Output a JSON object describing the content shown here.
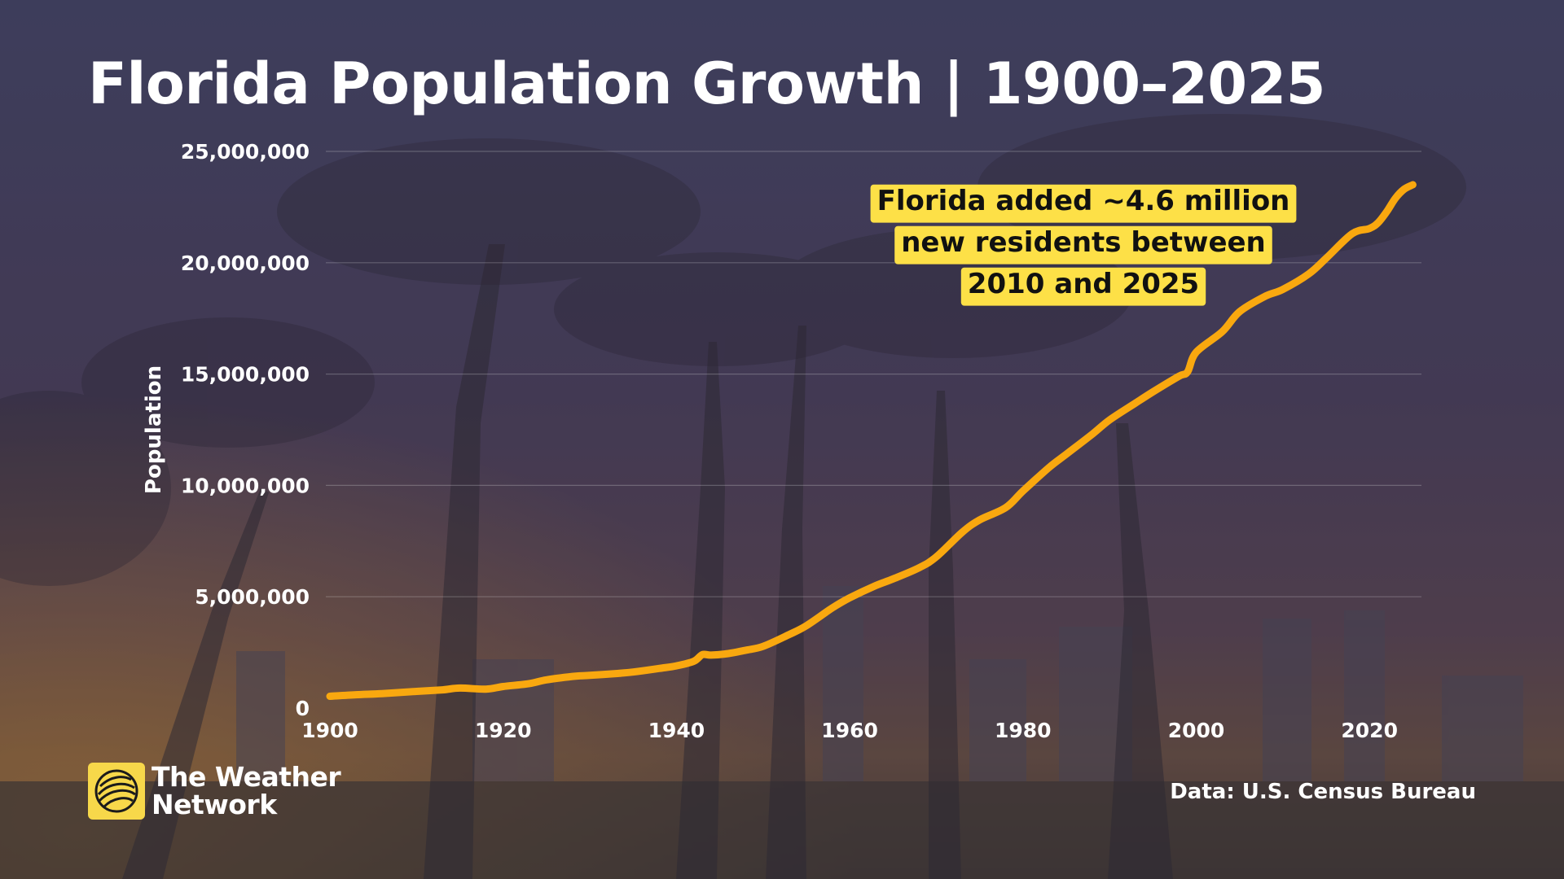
{
  "title": "Florida Population Growth | 1900–2025",
  "source": "Data: U.S. Census Bureau",
  "brand": {
    "line1": "The Weather",
    "line2": "Network",
    "icon": "globe-icon"
  },
  "colors": {
    "line": "#f9a80f",
    "annotation_bg": "#fde047",
    "annotation_text": "#111111",
    "text": "#ffffff",
    "grid": "rgba(255,255,255,0.22)",
    "brand_yellow": "#f7d84a"
  },
  "chart_data": {
    "type": "line",
    "title": "Florida Population Growth | 1900–2025",
    "xlabel": "",
    "ylabel": "Population",
    "xlim": [
      1900,
      2026
    ],
    "ylim": [
      0,
      25000000
    ],
    "x_ticks": [
      1900,
      1920,
      1940,
      1960,
      1980,
      2000,
      2020
    ],
    "x_tick_labels": [
      "1900",
      "1920",
      "1940",
      "1960",
      "1980",
      "2000",
      "2020"
    ],
    "y_ticks": [
      0,
      5000000,
      10000000,
      15000000,
      20000000,
      25000000
    ],
    "y_tick_labels": [
      "0",
      "5,000,000",
      "10,000,000",
      "15,000,000",
      "20,000,000",
      "25,000,000"
    ],
    "grid": true,
    "legend": "none",
    "series": [
      {
        "x": [
          1900,
          1903,
          1906,
          1910,
          1913,
          1915,
          1918,
          1920,
          1923,
          1925,
          1928,
          1930,
          1933,
          1935,
          1938,
          1940,
          1942,
          1943,
          1944,
          1946,
          1948,
          1950,
          1953,
          1955,
          1958,
          1960,
          1963,
          1965,
          1968,
          1970,
          1973,
          1975,
          1978,
          1980,
          1983,
          1985,
          1988,
          1990,
          1993,
          1995,
          1998,
          1999,
          2000,
          2003,
          2005,
          2008,
          2010,
          2013,
          2015,
          2018,
          2020,
          2021,
          2022,
          2023,
          2024,
          2025
        ],
        "values": [
          530000,
          600000,
          650000,
          750000,
          820000,
          900000,
          850000,
          968000,
          1100000,
          1270000,
          1420000,
          1468000,
          1550000,
          1620000,
          1780000,
          1897000,
          2100000,
          2400000,
          2380000,
          2450000,
          2600000,
          2771000,
          3300000,
          3700000,
          4500000,
          4952000,
          5500000,
          5800000,
          6300000,
          6791000,
          7900000,
          8450000,
          9000000,
          9746000,
          10800000,
          11400000,
          12300000,
          12938000,
          13700000,
          14200000,
          14900000,
          15100000,
          15983000,
          16900000,
          17800000,
          18500000,
          18801000,
          19500000,
          20200000,
          21300000,
          21538000,
          21800000,
          22300000,
          22900000,
          23300000,
          23500000
        ]
      }
    ],
    "annotations": [
      {
        "lines": [
          "Florida added ~4.6 million",
          "new residents between",
          "2010 and 2025"
        ]
      }
    ]
  }
}
